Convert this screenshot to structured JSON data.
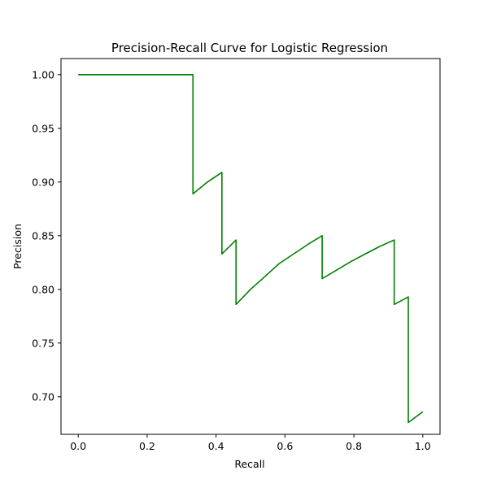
{
  "chart_data": {
    "type": "line",
    "title": "Precision-Recall Curve for Logistic Regression",
    "xlabel": "Recall",
    "ylabel": "Precision",
    "xlim": [
      -0.05,
      1.05
    ],
    "ylim": [
      0.665,
      1.015
    ],
    "xticks": [
      0.0,
      0.2,
      0.4,
      0.6,
      0.8,
      1.0
    ],
    "xtick_labels": [
      "0.0",
      "0.2",
      "0.4",
      "0.6",
      "0.8",
      "1.0"
    ],
    "yticks": [
      0.7,
      0.75,
      0.8,
      0.85,
      0.9,
      0.95,
      1.0
    ],
    "ytick_labels": [
      "0.70",
      "0.75",
      "0.80",
      "0.85",
      "0.90",
      "0.95",
      "1.00"
    ],
    "grid": false,
    "series": [
      {
        "color": "#008000",
        "x": [
          0.0,
          0.333,
          0.333,
          0.375,
          0.417,
          0.417,
          0.458,
          0.458,
          0.5,
          0.542,
          0.583,
          0.625,
          0.667,
          0.708,
          0.708,
          0.75,
          0.792,
          0.833,
          0.875,
          0.917,
          0.917,
          0.958,
          0.958,
          1.0
        ],
        "y": [
          1.0,
          1.0,
          0.889,
          0.9,
          0.909,
          0.833,
          0.846,
          0.786,
          0.8,
          0.812,
          0.824,
          0.833,
          0.842,
          0.85,
          0.81,
          0.818,
          0.826,
          0.833,
          0.84,
          0.846,
          0.786,
          0.793,
          0.676,
          0.686
        ]
      }
    ]
  }
}
